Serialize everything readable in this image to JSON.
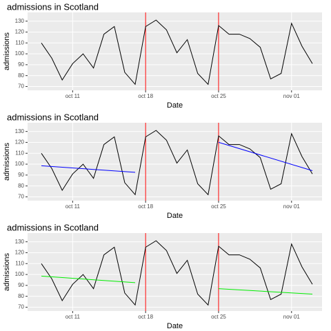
{
  "chart_data": [
    {
      "type": "line",
      "title": "admissions in Scotland",
      "x_label": "Date",
      "y_label": "admissions",
      "categories": [
        "oct 08",
        "oct 09",
        "oct 10",
        "oct 11",
        "oct 12",
        "oct 13",
        "oct 14",
        "oct 15",
        "oct 16",
        "oct 17",
        "oct 18",
        "oct 19",
        "oct 20",
        "oct 21",
        "oct 22",
        "oct 23",
        "oct 24",
        "oct 25",
        "oct 26",
        "oct 27",
        "oct 28",
        "oct 29",
        "oct 30",
        "oct 31",
        "nov 01",
        "nov 02",
        "nov 03"
      ],
      "values": [
        110,
        96,
        76,
        91,
        100,
        87,
        118,
        125,
        83,
        72,
        125,
        131,
        122,
        101,
        113,
        82,
        72,
        126,
        118,
        118,
        114,
        106,
        77,
        82,
        128,
        107,
        91
      ],
      "color": "#000000",
      "ylim": [
        66.5,
        138
      ],
      "yticks": [
        70,
        80,
        90,
        100,
        110,
        120,
        130
      ],
      "xticks": [
        "oct 11",
        "oct 18",
        "oct 25",
        "nov 01"
      ],
      "grid": true,
      "vlines": [
        "oct 18",
        "oct 25"
      ],
      "vline_color": "#ff0000",
      "trend_lines": []
    },
    {
      "type": "line",
      "title": "admissions in Scotland",
      "x_label": "Date",
      "y_label": "admissions",
      "categories": [
        "oct 08",
        "oct 09",
        "oct 10",
        "oct 11",
        "oct 12",
        "oct 13",
        "oct 14",
        "oct 15",
        "oct 16",
        "oct 17",
        "oct 18",
        "oct 19",
        "oct 20",
        "oct 21",
        "oct 22",
        "oct 23",
        "oct 24",
        "oct 25",
        "oct 26",
        "oct 27",
        "oct 28",
        "oct 29",
        "oct 30",
        "oct 31",
        "nov 01",
        "nov 02",
        "nov 03"
      ],
      "values": [
        110,
        96,
        76,
        91,
        100,
        87,
        118,
        125,
        83,
        72,
        125,
        131,
        122,
        101,
        113,
        82,
        72,
        126,
        118,
        118,
        114,
        106,
        77,
        82,
        128,
        107,
        91
      ],
      "color": "#000000",
      "ylim": [
        66.5,
        138
      ],
      "yticks": [
        70,
        80,
        90,
        100,
        110,
        120,
        130
      ],
      "xticks": [
        "oct 11",
        "oct 18",
        "oct 25",
        "nov 01"
      ],
      "grid": true,
      "vlines": [
        "oct 18",
        "oct 25"
      ],
      "vline_color": "#ff0000",
      "trend_lines": [
        {
          "color": "#0000ff",
          "x": [
            "oct 08",
            "oct 17"
          ],
          "values": [
            98.5,
            92.5
          ]
        },
        {
          "color": "#0000ff",
          "x": [
            "oct 25",
            "nov 03"
          ],
          "values": [
            120,
            94
          ]
        }
      ]
    },
    {
      "type": "line",
      "title": "admissions in Scotland",
      "x_label": "Date",
      "y_label": "admissions",
      "categories": [
        "oct 08",
        "oct 09",
        "oct 10",
        "oct 11",
        "oct 12",
        "oct 13",
        "oct 14",
        "oct 15",
        "oct 16",
        "oct 17",
        "oct 18",
        "oct 19",
        "oct 20",
        "oct 21",
        "oct 22",
        "oct 23",
        "oct 24",
        "oct 25",
        "oct 26",
        "oct 27",
        "oct 28",
        "oct 29",
        "oct 30",
        "oct 31",
        "nov 01",
        "nov 02",
        "nov 03"
      ],
      "values": [
        110,
        96,
        76,
        91,
        100,
        87,
        118,
        125,
        83,
        72,
        125,
        131,
        122,
        101,
        113,
        82,
        72,
        126,
        118,
        118,
        114,
        106,
        77,
        82,
        128,
        107,
        91
      ],
      "color": "#000000",
      "ylim": [
        66.5,
        138
      ],
      "yticks": [
        70,
        80,
        90,
        100,
        110,
        120,
        130
      ],
      "xticks": [
        "oct 11",
        "oct 18",
        "oct 25",
        "nov 01"
      ],
      "grid": true,
      "vlines": [
        "oct 18",
        "oct 25"
      ],
      "vline_color": "#ff0000",
      "trend_lines": [
        {
          "color": "#00ee00",
          "x": [
            "oct 08",
            "oct 17"
          ],
          "values": [
            98.5,
            92.5
          ]
        },
        {
          "color": "#00ee00",
          "x": [
            "oct 25",
            "nov 03"
          ],
          "values": [
            87,
            82
          ]
        }
      ]
    }
  ]
}
